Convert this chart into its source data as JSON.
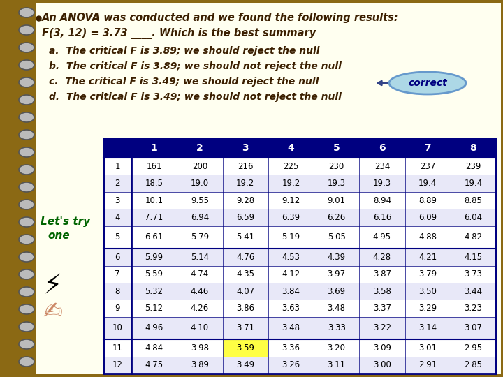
{
  "bg_color": "#8B6914",
  "page_color": "#FFFFF0",
  "title_lines": [
    "An ANOVA was conducted and we found the following results:",
    "F(3, 12) = 3.73 ____. Which is the best summary"
  ],
  "options": [
    "a.  The critical F is 3.89; we should reject the null",
    "b.  The critical F is 3.89; we should not reject the null",
    "c.  The critical F is 3.49; we should reject the null",
    "d.  The critical F is 3.49; we should not reject the null"
  ],
  "table_header_cols": [
    "",
    "1",
    "2",
    "3",
    "4",
    "5",
    "6",
    "7",
    "8"
  ],
  "table_rows": [
    [
      "1",
      "161",
      "200",
      "216",
      "225",
      "230",
      "234",
      "237",
      "239"
    ],
    [
      "2",
      "18.5",
      "19.0",
      "19.2",
      "19.2",
      "19.3",
      "19.3",
      "19.4",
      "19.4"
    ],
    [
      "3",
      "10.1",
      "9.55",
      "9.28",
      "9.12",
      "9.01",
      "8.94",
      "8.89",
      "8.85"
    ],
    [
      "4",
      "7.71",
      "6.94",
      "6.59",
      "6.39",
      "6.26",
      "6.16",
      "6.09",
      "6.04"
    ],
    [
      "5",
      "6.61",
      "5.79",
      "5.41",
      "5.19",
      "5.05",
      "4.95",
      "4.88",
      "4.82"
    ],
    [
      "6",
      "5.99",
      "5.14",
      "4.76",
      "4.53",
      "4.39",
      "4.28",
      "4.21",
      "4.15"
    ],
    [
      "7",
      "5.59",
      "4.74",
      "4.35",
      "4.12",
      "3.97",
      "3.87",
      "3.79",
      "3.73"
    ],
    [
      "8",
      "5.32",
      "4.46",
      "4.07",
      "3.84",
      "3.69",
      "3.58",
      "3.50",
      "3.44"
    ],
    [
      "9",
      "5.12",
      "4.26",
      "3.86",
      "3.63",
      "3.48",
      "3.37",
      "3.29",
      "3.23"
    ],
    [
      "10",
      "4.96",
      "4.10",
      "3.71",
      "3.48",
      "3.33",
      "3.22",
      "3.14",
      "3.07"
    ],
    [
      "11",
      "4.84",
      "3.98",
      "3.59",
      "3.36",
      "3.20",
      "3.09",
      "3.01",
      "2.95"
    ],
    [
      "12",
      "4.75",
      "3.89",
      "3.49",
      "3.26",
      "3.11",
      "3.00",
      "2.91",
      "2.85"
    ]
  ],
  "table_header_color": "#000080",
  "table_header_text_color": "#FFFFFF",
  "table_border_color": "#000080",
  "correct_bubble_color": "#ADD8E6",
  "correct_text_color": "#000080",
  "text_color": "#3B1F00",
  "text_color_green": "#006400",
  "highlight_row": 11,
  "highlight_col": 3
}
